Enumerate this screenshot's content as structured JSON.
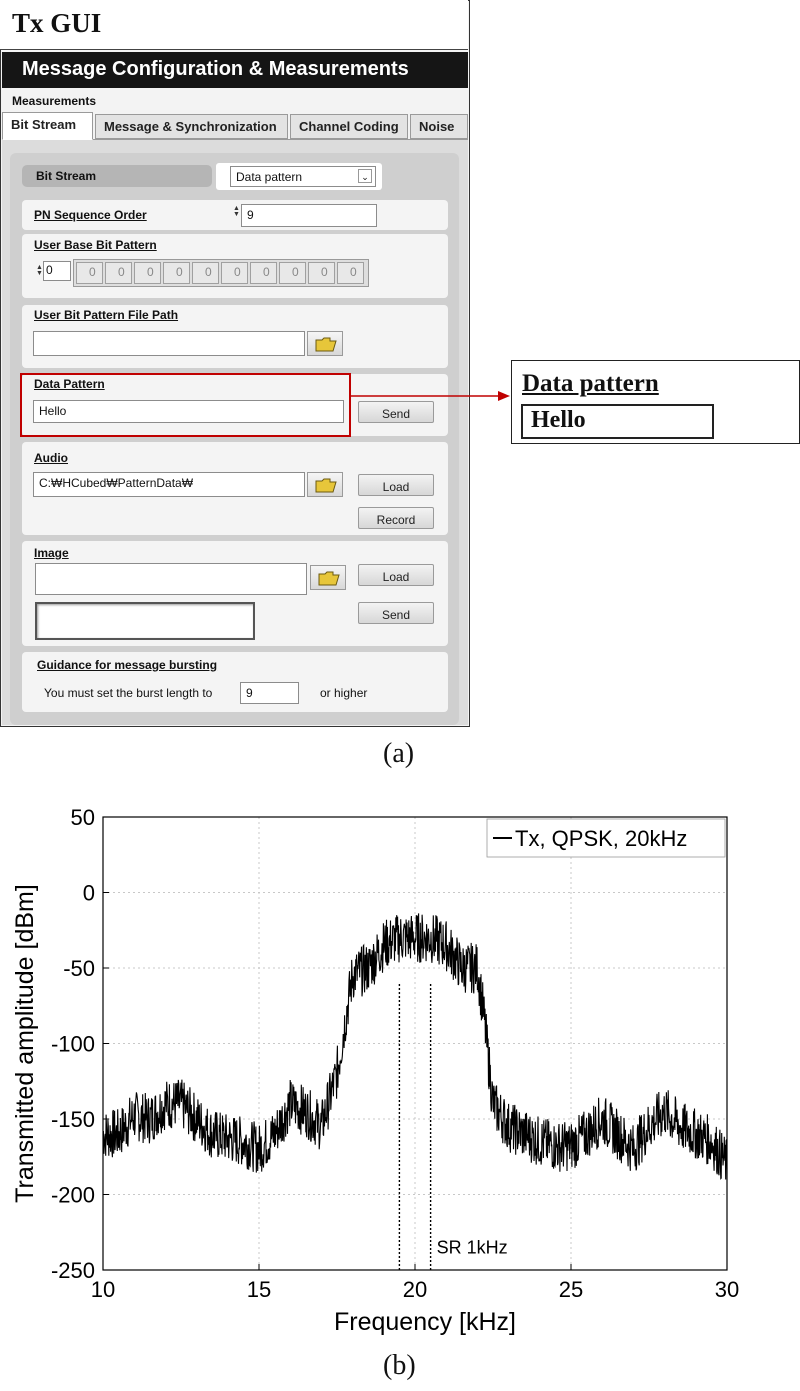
{
  "gui": {
    "title": "Tx GUI",
    "banner": "Message Configuration & Measurements",
    "section_label": "Measurements",
    "tabs": [
      {
        "label": "Bit Stream",
        "active": true
      },
      {
        "label": "Message & Synchronization",
        "active": false
      },
      {
        "label": "Channel Coding",
        "active": false
      },
      {
        "label": "Noise",
        "active": false
      }
    ],
    "bit_stream": {
      "label": "Bit Stream",
      "selected": "Data pattern"
    },
    "pn_sequence": {
      "label": "PN Sequence Order",
      "value": "9"
    },
    "user_base": {
      "label": "User Base Bit Pattern",
      "first": "0",
      "bits": [
        "0",
        "0",
        "0",
        "0",
        "0",
        "0",
        "0",
        "0",
        "0",
        "0"
      ]
    },
    "file_path": {
      "label": "User Bit Pattern File Path",
      "value": ""
    },
    "data_pattern": {
      "label": "Data Pattern",
      "value": "Hello",
      "send": "Send"
    },
    "audio": {
      "label": "Audio",
      "path": "C:₩HCubed₩PatternData₩",
      "load": "Load",
      "record": "Record"
    },
    "image": {
      "label": "Image",
      "load": "Load",
      "send": "Send"
    },
    "guidance": {
      "label": "Guidance for message bursting",
      "text": "You must set the burst length to",
      "value": "9",
      "suffix": "or higher"
    },
    "highlight_color": "#c00000"
  },
  "callout": {
    "title": "Data pattern",
    "value": "Hello"
  },
  "captions": {
    "a": "(a)",
    "b": "(b)"
  },
  "chart_data": {
    "type": "line",
    "xlabel": "Frequency [kHz]",
    "ylabel": "Transmitted amplitude [dBm]",
    "xlim": [
      10,
      30
    ],
    "ylim": [
      -250,
      50
    ],
    "xticks": [
      10,
      15,
      20,
      25,
      30
    ],
    "yticks": [
      50,
      0,
      -50,
      -100,
      -150,
      -200,
      -250
    ],
    "grid": true,
    "legend": "top-right",
    "series": [
      {
        "name": "Tx, QPSK, 20kHz",
        "color": "#000000",
        "x": [
          10,
          10.5,
          11,
          11.5,
          12,
          12.5,
          13,
          13.5,
          14,
          14.5,
          15,
          15.5,
          16,
          16.5,
          17,
          17.5,
          17.8,
          18,
          18.5,
          19,
          19.5,
          20,
          20.5,
          21,
          21.5,
          22,
          22.2,
          22.5,
          23,
          23.5,
          24,
          24.5,
          25,
          25.5,
          26,
          26.5,
          27,
          27.5,
          28,
          28.5,
          29,
          29.5,
          30
        ],
        "y": [
          -160,
          -160,
          -148,
          -150,
          -140,
          -140,
          -150,
          -160,
          -163,
          -165,
          -170,
          -160,
          -140,
          -145,
          -155,
          -120,
          -80,
          -55,
          -50,
          -35,
          -30,
          -30,
          -30,
          -35,
          -50,
          -50,
          -80,
          -140,
          -155,
          -160,
          -165,
          -168,
          -168,
          -160,
          -150,
          -160,
          -170,
          -155,
          -145,
          -155,
          -160,
          -165,
          -180
        ]
      }
    ],
    "annotations": [
      {
        "text": "SR 1kHz",
        "x": 20.5,
        "y": -235
      }
    ],
    "markers": [
      {
        "x": 19.5,
        "y_from": -250,
        "y_to": -60
      },
      {
        "x": 20.5,
        "y_from": -250,
        "y_to": -60
      }
    ]
  }
}
